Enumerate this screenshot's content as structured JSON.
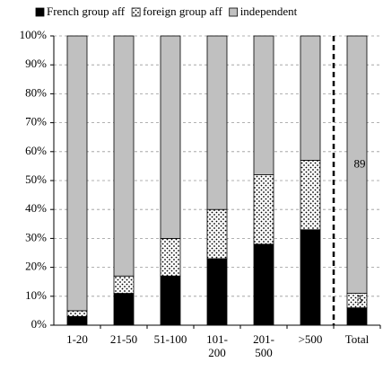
{
  "chart_data": {
    "type": "stacked_bar",
    "categories": [
      "1-20",
      "21-50",
      "51-100",
      "101-\n200",
      "201-\n500",
      ">500",
      "Total"
    ],
    "series": [
      {
        "name": "French group aff",
        "color": "#000000",
        "values": [
          3,
          11,
          17,
          23,
          28,
          33,
          6
        ]
      },
      {
        "name": "foreign group aff",
        "color": "#ffffff",
        "pattern": "dots",
        "values": [
          2,
          6,
          13,
          17,
          24,
          24,
          5
        ],
        "value_labels": [
          null,
          null,
          null,
          null,
          null,
          null,
          "5"
        ]
      },
      {
        "name": "independent",
        "color": "#c0c0c0",
        "values": [
          95,
          83,
          70,
          60,
          48,
          43,
          89
        ],
        "value_labels": [
          null,
          null,
          null,
          null,
          null,
          null,
          "89"
        ]
      }
    ],
    "ylim": [
      0,
      100
    ],
    "yticks": [
      {
        "value": 0,
        "label": "0%"
      },
      {
        "value": 10,
        "label": "10%"
      },
      {
        "value": 20,
        "label": "20%"
      },
      {
        "value": 30,
        "label": "30%"
      },
      {
        "value": 40,
        "label": "40%"
      },
      {
        "value": 50,
        "label": "50%"
      },
      {
        "value": 60,
        "label": "60%"
      },
      {
        "value": 70,
        "label": "70%"
      },
      {
        "value": 80,
        "label": "80%"
      },
      {
        "value": 90,
        "label": "90%"
      },
      {
        "value": 100,
        "label": "100%"
      }
    ],
    "grid": true,
    "legend": "top"
  }
}
